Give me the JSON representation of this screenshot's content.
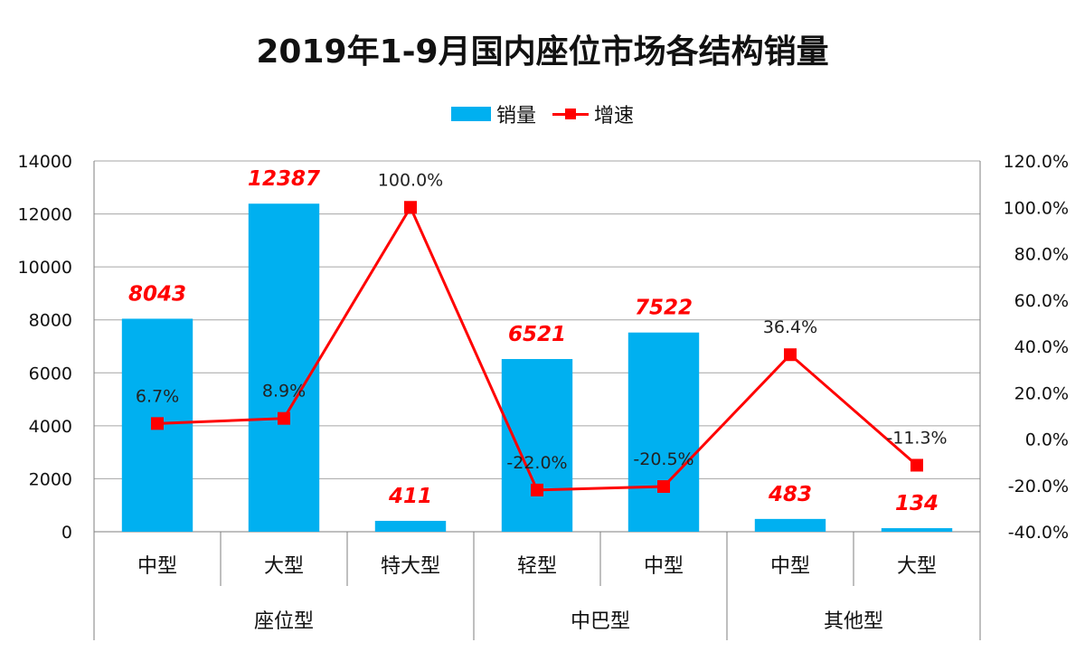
{
  "chart_data": {
    "type": "bar",
    "title": "2019年1-9月国内座位市场各结构销量",
    "categories": [
      "中型",
      "大型",
      "特大型",
      "轻型",
      "中型",
      "中型",
      "大型"
    ],
    "groups": [
      {
        "label": "座位型",
        "span": 3
      },
      {
        "label": "中巴型",
        "span": 2
      },
      {
        "label": "其他型",
        "span": 2
      }
    ],
    "series": [
      {
        "name": "销量",
        "type": "bar",
        "axis": "left",
        "color": "#00B0F0",
        "values": [
          8043,
          12387,
          411,
          6521,
          7522,
          483,
          134
        ],
        "labels": [
          "8043",
          "12387",
          "411",
          "6521",
          "7522",
          "483",
          "134"
        ]
      },
      {
        "name": "增速",
        "type": "line",
        "axis": "right",
        "color": "#FF0000",
        "values": [
          6.7,
          8.9,
          100.0,
          -22.0,
          -20.5,
          36.4,
          -11.3
        ],
        "labels": [
          "6.7%",
          "8.9%",
          "100.0%",
          "-22.0%",
          "-20.5%",
          "36.4%",
          "-11.3%"
        ]
      }
    ],
    "y_left": {
      "min": 0,
      "max": 14000,
      "ticks": [
        "0",
        "2000",
        "4000",
        "6000",
        "8000",
        "10000",
        "12000",
        "14000"
      ]
    },
    "y_right": {
      "min": -40,
      "max": 120,
      "ticks": [
        "-40.0%",
        "-20.0%",
        "0.0%",
        "20.0%",
        "40.0%",
        "60.0%",
        "80.0%",
        "100.0%",
        "120.0%"
      ]
    },
    "grid": true,
    "legend_position": "top"
  }
}
